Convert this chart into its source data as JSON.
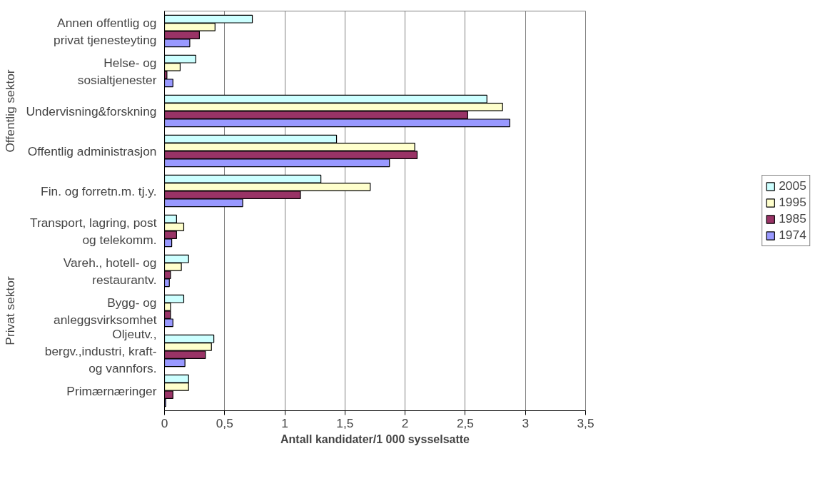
{
  "chart_data": {
    "type": "bar",
    "orientation": "horizontal",
    "xlabel": "Antall kandidater/1 000 sysselsatte",
    "categories": [
      "Annen offentlig og privat tjenesteyting",
      "Helse- og sosialtjenester",
      "Undervisning&forskning",
      "Offentlig administrasjon",
      "Fin. og forretn.m. tj.y.",
      "Transport, lagring, post og telekomm.",
      "Vareh., hotell- og restaurantv.",
      "Bygg- og anleggsvirksomhet",
      "Oljeutv., bergv.,industri, kraft- og vannfors.",
      "Primærnæringer"
    ],
    "series": [
      {
        "name": "2005",
        "color": "#ccffff",
        "values": [
          0.73,
          0.26,
          2.68,
          1.43,
          1.3,
          0.1,
          0.2,
          0.16,
          0.41,
          0.2
        ]
      },
      {
        "name": "1995",
        "color": "#ffffcc",
        "values": [
          0.42,
          0.13,
          2.81,
          2.08,
          1.71,
          0.16,
          0.14,
          0.05,
          0.39,
          0.2
        ]
      },
      {
        "name": "1985",
        "color": "#993366",
        "values": [
          0.29,
          0.02,
          2.52,
          2.1,
          1.13,
          0.1,
          0.05,
          0.05,
          0.34,
          0.07
        ]
      },
      {
        "name": "1974",
        "color": "#9999ff",
        "values": [
          0.21,
          0.07,
          2.87,
          1.87,
          0.65,
          0.06,
          0.04,
          0.07,
          0.17,
          0.01
        ]
      }
    ],
    "xlim": [
      0,
      3.5
    ],
    "xticks": [
      {
        "value": 0,
        "label": "0"
      },
      {
        "value": 0.5,
        "label": "0,5"
      },
      {
        "value": 1,
        "label": "1"
      },
      {
        "value": 1.5,
        "label": "1,5"
      },
      {
        "value": 2,
        "label": "2"
      },
      {
        "value": 2.5,
        "label": "2,5"
      },
      {
        "value": 3,
        "label": "3"
      },
      {
        "value": 3.5,
        "label": "3,5"
      }
    ],
    "grid": "x",
    "legend": "right",
    "annotations": [
      "Offentlig sektor",
      "Privat sektor"
    ]
  }
}
